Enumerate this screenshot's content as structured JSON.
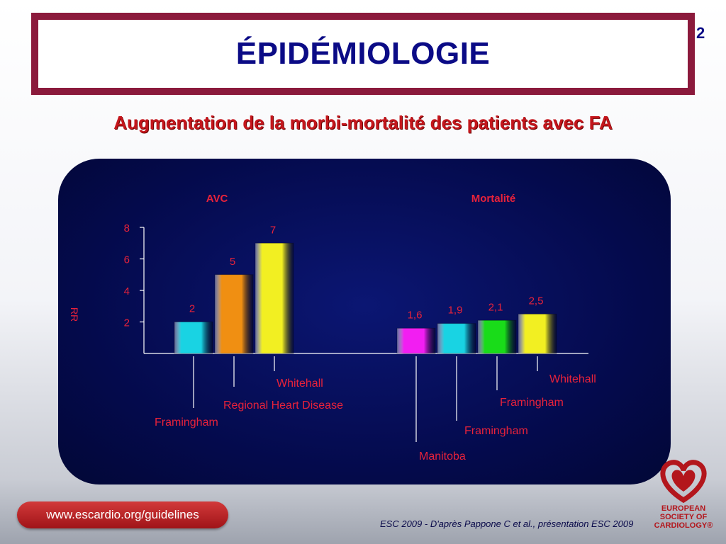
{
  "title": "ÉPIDÉMIOLOGIE",
  "page_number": "2",
  "subtitle": "Augmentation de la morbi-mortalité des patients avec FA",
  "footer": {
    "url": "www.escardio.org/guidelines",
    "citation": "ESC 2009 - D'après Pappone C et al., présentation ESC 2009",
    "logo_lines": [
      "EUROPEAN",
      "SOCIETY OF",
      "CARDIOLOGY®"
    ]
  },
  "colors": {
    "title_frame": "#8b1a3c",
    "title_text": "#0b0b86",
    "subtitle_text": "#c4161c",
    "panel_bg": "#040a4c",
    "label_text": "#e8223a"
  },
  "chart_data": {
    "type": "bar",
    "ylabel": "RR",
    "ylim": [
      0,
      8
    ],
    "yticks": [
      2,
      4,
      6,
      8
    ],
    "groups": [
      {
        "name": "AVC",
        "bars": [
          {
            "label": "Framingham",
            "value": 2,
            "value_label": "2",
            "color": "#19d3e3"
          },
          {
            "label": "Regional Heart Disease",
            "value": 5,
            "value_label": "5",
            "color": "#f08f12"
          },
          {
            "label": "Whitehall",
            "value": 7,
            "value_label": "7",
            "color": "#f2ef22"
          }
        ]
      },
      {
        "name": "Mortalité",
        "bars": [
          {
            "label": "Manitoba",
            "value": 1.6,
            "value_label": "1,6",
            "color": "#f21ef2"
          },
          {
            "label": "Framingham",
            "value": 1.9,
            "value_label": "1,9",
            "color": "#19d3e3"
          },
          {
            "label": "Framingham",
            "value": 2.1,
            "value_label": "2,1",
            "color": "#19dc19"
          },
          {
            "label": "Whitehall",
            "value": 2.5,
            "value_label": "2,5",
            "color": "#f2ef22"
          }
        ]
      }
    ]
  }
}
